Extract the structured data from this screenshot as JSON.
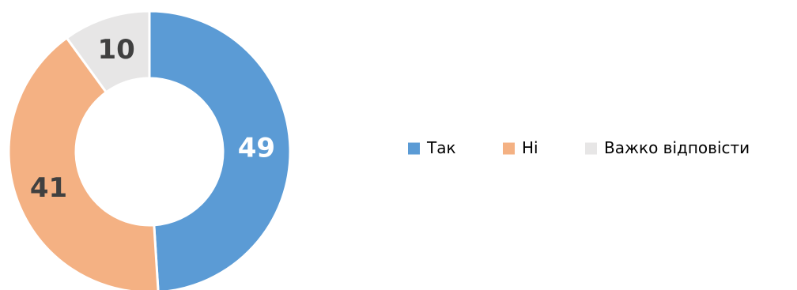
{
  "chart_data": {
    "type": "pie",
    "subtype": "donut",
    "title": "",
    "categories": [
      "Так",
      "Ні",
      "Важко відповісти"
    ],
    "values": [
      49,
      41,
      10
    ],
    "colors": [
      "#5b9bd5",
      "#f4b183",
      "#e7e6e6"
    ],
    "label_colors": [
      "#ffffff",
      "#404040",
      "#404040"
    ],
    "legend_position": "right",
    "show_data_labels": true
  }
}
